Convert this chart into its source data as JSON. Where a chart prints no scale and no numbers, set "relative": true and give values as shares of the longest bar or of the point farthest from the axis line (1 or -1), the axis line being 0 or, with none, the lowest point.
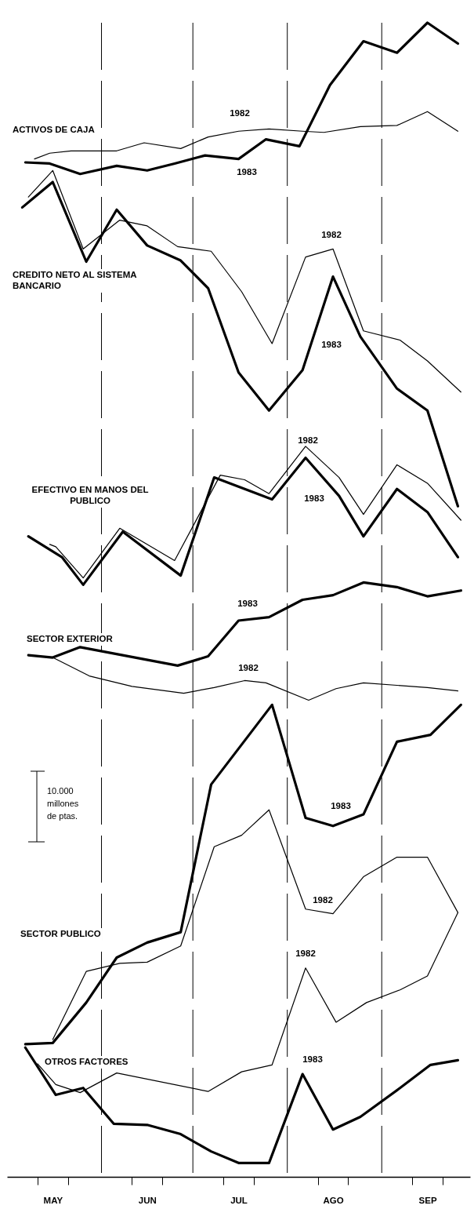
{
  "chart_data": {
    "type": "line",
    "relative": true,
    "xlim": [
      "--05-01",
      "--09-30"
    ],
    "xticks": [
      {
        "value": "--05-11",
        "label": null
      },
      {
        "value": "--05-16",
        "label": "MAY"
      },
      {
        "value": "--05-21",
        "label": null
      },
      {
        "value": "--06-11",
        "label": null
      },
      {
        "value": "--06-16",
        "label": "JUN"
      },
      {
        "value": "--06-21",
        "label": null
      },
      {
        "value": "--07-11",
        "label": null
      },
      {
        "value": "--07-16",
        "label": "JUL"
      },
      {
        "value": "--07-21",
        "label": null
      },
      {
        "value": "--08-11",
        "label": null
      },
      {
        "value": "--08-16",
        "label": "AGO"
      },
      {
        "value": "--08-21",
        "label": null
      },
      {
        "value": "--09-11",
        "label": null
      },
      {
        "value": "--09-16",
        "label": "SEP"
      },
      {
        "value": "--09-21",
        "label": null
      }
    ],
    "ref_lines": [
      {
        "axis": "x",
        "value": "--06-01",
        "line_style": "dashed"
      },
      {
        "axis": "x",
        "value": "--07-01",
        "line_style": "dashed"
      },
      {
        "axis": "x",
        "value": "--08-01",
        "line_style": "dashed"
      },
      {
        "axis": "x",
        "value": "--09-01",
        "line_style": "dashed"
      }
    ],
    "annotations": [
      "ACTIVOS DE CAJA",
      "CREDITO NETO AL SISTEMA\nBANCARIO",
      "EFECTIVO EN MANOS DEL\nPUBLICO",
      "SECTOR EXTERIOR",
      "SECTOR PUBLICO",
      "OTROS FACTORES",
      "10.000\nmillones\nde ptas."
    ],
    "series": [
      {
        "name": "1982",
        "color": "#000000",
        "x": [
          "--05-10",
          "--05-15",
          "--05-22",
          "--06-06",
          "--06-15",
          "--06-27",
          "--07-06",
          "--07-16",
          "--07-26",
          "--08-06",
          "--08-13",
          "--08-25",
          "--09-06",
          "--09-16",
          "--09-26"
        ],
        "values": [
          0.882,
          0.887,
          0.889,
          0.889,
          0.896,
          0.891,
          0.901,
          0.906,
          0.908,
          0.906,
          0.905,
          0.91,
          0.911,
          0.923,
          0.906
        ]
      },
      {
        "name": "1983",
        "color": "#000000",
        "x": [
          "--05-07",
          "--05-15",
          "--05-25",
          "--06-06",
          "--06-16",
          "--06-25",
          "--07-05",
          "--07-16",
          "--07-25",
          "--08-05",
          "--08-15",
          "--08-26",
          "--09-06",
          "--09-16",
          "--09-26"
        ],
        "values": [
          0.879,
          0.878,
          0.869,
          0.876,
          0.872,
          0.878,
          0.885,
          0.882,
          0.899,
          0.893,
          0.946,
          0.984,
          0.974,
          1.0,
          0.982
        ]
      },
      {
        "name": "1982",
        "color": "#000000",
        "x": [
          "--05-08",
          "--05-16",
          "--05-26",
          "--06-07",
          "--06-16",
          "--06-26",
          "--07-07",
          "--07-17",
          "--07-27",
          "--08-07",
          "--08-16",
          "--08-26",
          "--09-07",
          "--09-16",
          "--09-27"
        ],
        "values": [
          0.849,
          0.872,
          0.804,
          0.829,
          0.824,
          0.806,
          0.802,
          0.767,
          0.722,
          0.797,
          0.804,
          0.733,
          0.725,
          0.707,
          0.68
        ]
      },
      {
        "name": "1983",
        "color": "#000000",
        "x": [
          "--05-06",
          "--05-16",
          "--05-27",
          "--06-06",
          "--06-16",
          "--06-27",
          "--07-06",
          "--07-16",
          "--07-26",
          "--08-06",
          "--08-16",
          "--08-25",
          "--09-06",
          "--09-16",
          "--09-26"
        ],
        "values": [
          0.84,
          0.862,
          0.793,
          0.838,
          0.807,
          0.794,
          0.77,
          0.697,
          0.664,
          0.699,
          0.78,
          0.728,
          0.683,
          0.664,
          0.581
        ]
      },
      {
        "name": "1982",
        "color": "#000000",
        "x": [
          "--05-15",
          "--05-17",
          "--05-26",
          "--06-07",
          "--06-25",
          "--07-10",
          "--07-18",
          "--07-26",
          "--08-07",
          "--08-18",
          "--08-26",
          "--09-06",
          "--09-16",
          "--09-27"
        ],
        "values": [
          0.548,
          0.546,
          0.519,
          0.562,
          0.534,
          0.608,
          0.604,
          0.592,
          0.633,
          0.606,
          0.574,
          0.617,
          0.601,
          0.569
        ]
      },
      {
        "name": "1983",
        "color": "#000000",
        "x": [
          "--05-08",
          "--05-19",
          "--05-26",
          "--06-08",
          "--06-27",
          "--07-08",
          "--07-27",
          "--08-07",
          "--08-18",
          "--08-26",
          "--09-06",
          "--09-16",
          "--09-26"
        ],
        "values": [
          0.555,
          0.537,
          0.513,
          0.559,
          0.521,
          0.606,
          0.587,
          0.623,
          0.59,
          0.555,
          0.596,
          0.576,
          0.537
        ]
      },
      {
        "name": "1982",
        "color": "#000000",
        "x": [
          "--05-16",
          "--05-28",
          "--06-11",
          "--06-28",
          "--07-08",
          "--07-18",
          "--07-25",
          "--08-08",
          "--08-17",
          "--08-26",
          "--09-16",
          "--09-26"
        ],
        "values": [
          0.45,
          0.434,
          0.425,
          0.419,
          0.424,
          0.43,
          0.428,
          0.413,
          0.423,
          0.428,
          0.424,
          0.421
        ]
      },
      {
        "name": "1983",
        "color": "#000000",
        "x": [
          "--05-08",
          "--05-16",
          "--05-25",
          "--06-26",
          "--07-06",
          "--07-16",
          "--07-26",
          "--08-06",
          "--08-16",
          "--08-26",
          "--09-06",
          "--09-16",
          "--09-27"
        ],
        "values": [
          0.452,
          0.45,
          0.459,
          0.443,
          0.451,
          0.482,
          0.485,
          0.5,
          0.504,
          0.515,
          0.511,
          0.503,
          0.508
        ]
      },
      {
        "name": "1982",
        "color": "#000000",
        "x": [
          "--05-16",
          "--05-27",
          "--06-07",
          "--06-16",
          "--06-27",
          "--07-08",
          "--07-17",
          "--07-26",
          "--08-07",
          "--08-16",
          "--08-26",
          "--09-06",
          "--09-16",
          "--09-26"
        ],
        "values": [
          0.119,
          0.178,
          0.185,
          0.186,
          0.2,
          0.286,
          0.296,
          0.318,
          0.232,
          0.228,
          0.26,
          0.277,
          0.277,
          0.229
        ]
      },
      {
        "name": "1983",
        "color": "#000000",
        "x": [
          "--05-07",
          "--05-16",
          "--05-27",
          "--06-06",
          "--06-16",
          "--06-27",
          "--07-07",
          "--07-27",
          "--08-07",
          "--08-16",
          "--08-26",
          "--09-06",
          "--09-17",
          "--09-27"
        ],
        "values": [
          0.115,
          0.116,
          0.151,
          0.19,
          0.203,
          0.212,
          0.34,
          0.409,
          0.311,
          0.304,
          0.314,
          0.377,
          0.383,
          0.409
        ]
      },
      {
        "name": "1982",
        "color": "#000000",
        "x": [
          "--05-11",
          "--05-17",
          "--05-25",
          "--06-06",
          "--07-06",
          "--07-17",
          "--07-27",
          "--08-07",
          "--08-17",
          "--08-27",
          "--09-07",
          "--09-16",
          "--09-26"
        ],
        "values": [
          0.098,
          0.08,
          0.073,
          0.09,
          0.074,
          0.091,
          0.097,
          0.181,
          0.134,
          0.151,
          0.162,
          0.174,
          0.229
        ]
      },
      {
        "name": "1983",
        "color": "#000000",
        "x": [
          "--05-07",
          "--05-17",
          "--05-26",
          "--06-05",
          "--06-16",
          "--06-27",
          "--07-07",
          "--07-16",
          "--07-26",
          "--08-06",
          "--08-16",
          "--08-25",
          "--09-07",
          "--09-17",
          "--09-26"
        ],
        "values": [
          0.112,
          0.071,
          0.077,
          0.046,
          0.045,
          0.037,
          0.022,
          0.012,
          0.012,
          0.089,
          0.041,
          0.052,
          0.077,
          0.097,
          0.101
        ]
      }
    ]
  }
}
